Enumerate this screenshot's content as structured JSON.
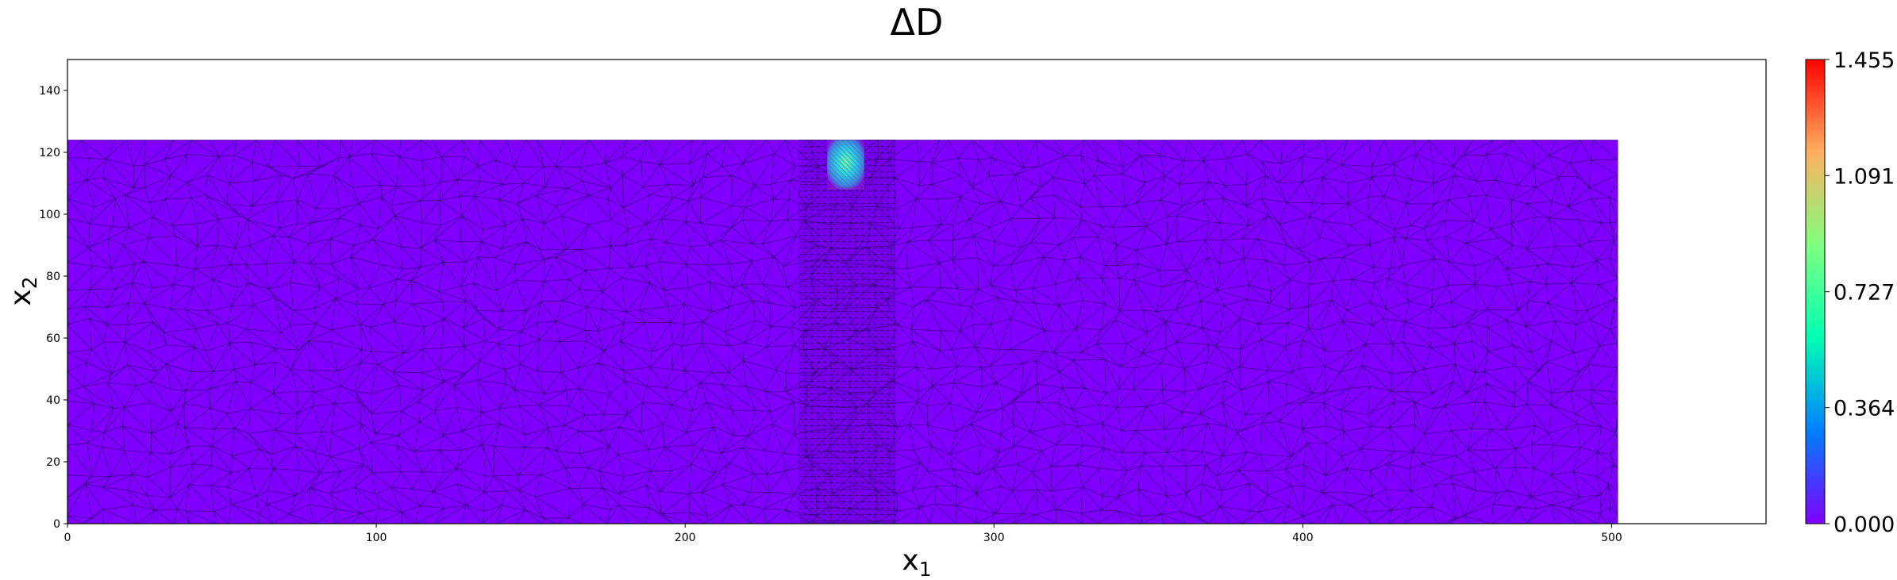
{
  "chart_data": {
    "type": "heatmap",
    "subtype": "triangulated-mesh-field",
    "title": "ΔD",
    "xlabel_base": "x",
    "xlabel_sub": "1",
    "ylabel_base": "x",
    "ylabel_sub": "2",
    "xlim": [
      0,
      550
    ],
    "ylim": [
      0,
      150
    ],
    "xticks": [
      0,
      100,
      200,
      300,
      400,
      500
    ],
    "yticks": [
      0,
      20,
      40,
      60,
      80,
      100,
      120,
      140
    ],
    "domain": {
      "x": [
        0,
        502
      ],
      "y": [
        0,
        124
      ]
    },
    "refined_band": {
      "x": [
        237,
        268
      ],
      "y": [
        0,
        124
      ]
    },
    "damage_zone": {
      "x": [
        246,
        258
      ],
      "y": [
        108,
        124
      ],
      "max_value": 1.455
    },
    "background_value": 0.0,
    "colormap": "rainbow",
    "colorbar": {
      "min": 0.0,
      "max": 1.455,
      "tick_labels": [
        "0.000",
        "0.364",
        "0.727",
        "1.091",
        "1.455"
      ],
      "tick_values": [
        0.0,
        0.364,
        0.727,
        1.091,
        1.455
      ]
    },
    "grid": false,
    "colors": {
      "background_field": "#7f00ff",
      "mesh_lines": "#1a0040",
      "colormap_stops": [
        "#8000ff",
        "#0080ff",
        "#00ffb4",
        "#80ff80",
        "#ffb060",
        "#ff0000"
      ]
    }
  }
}
